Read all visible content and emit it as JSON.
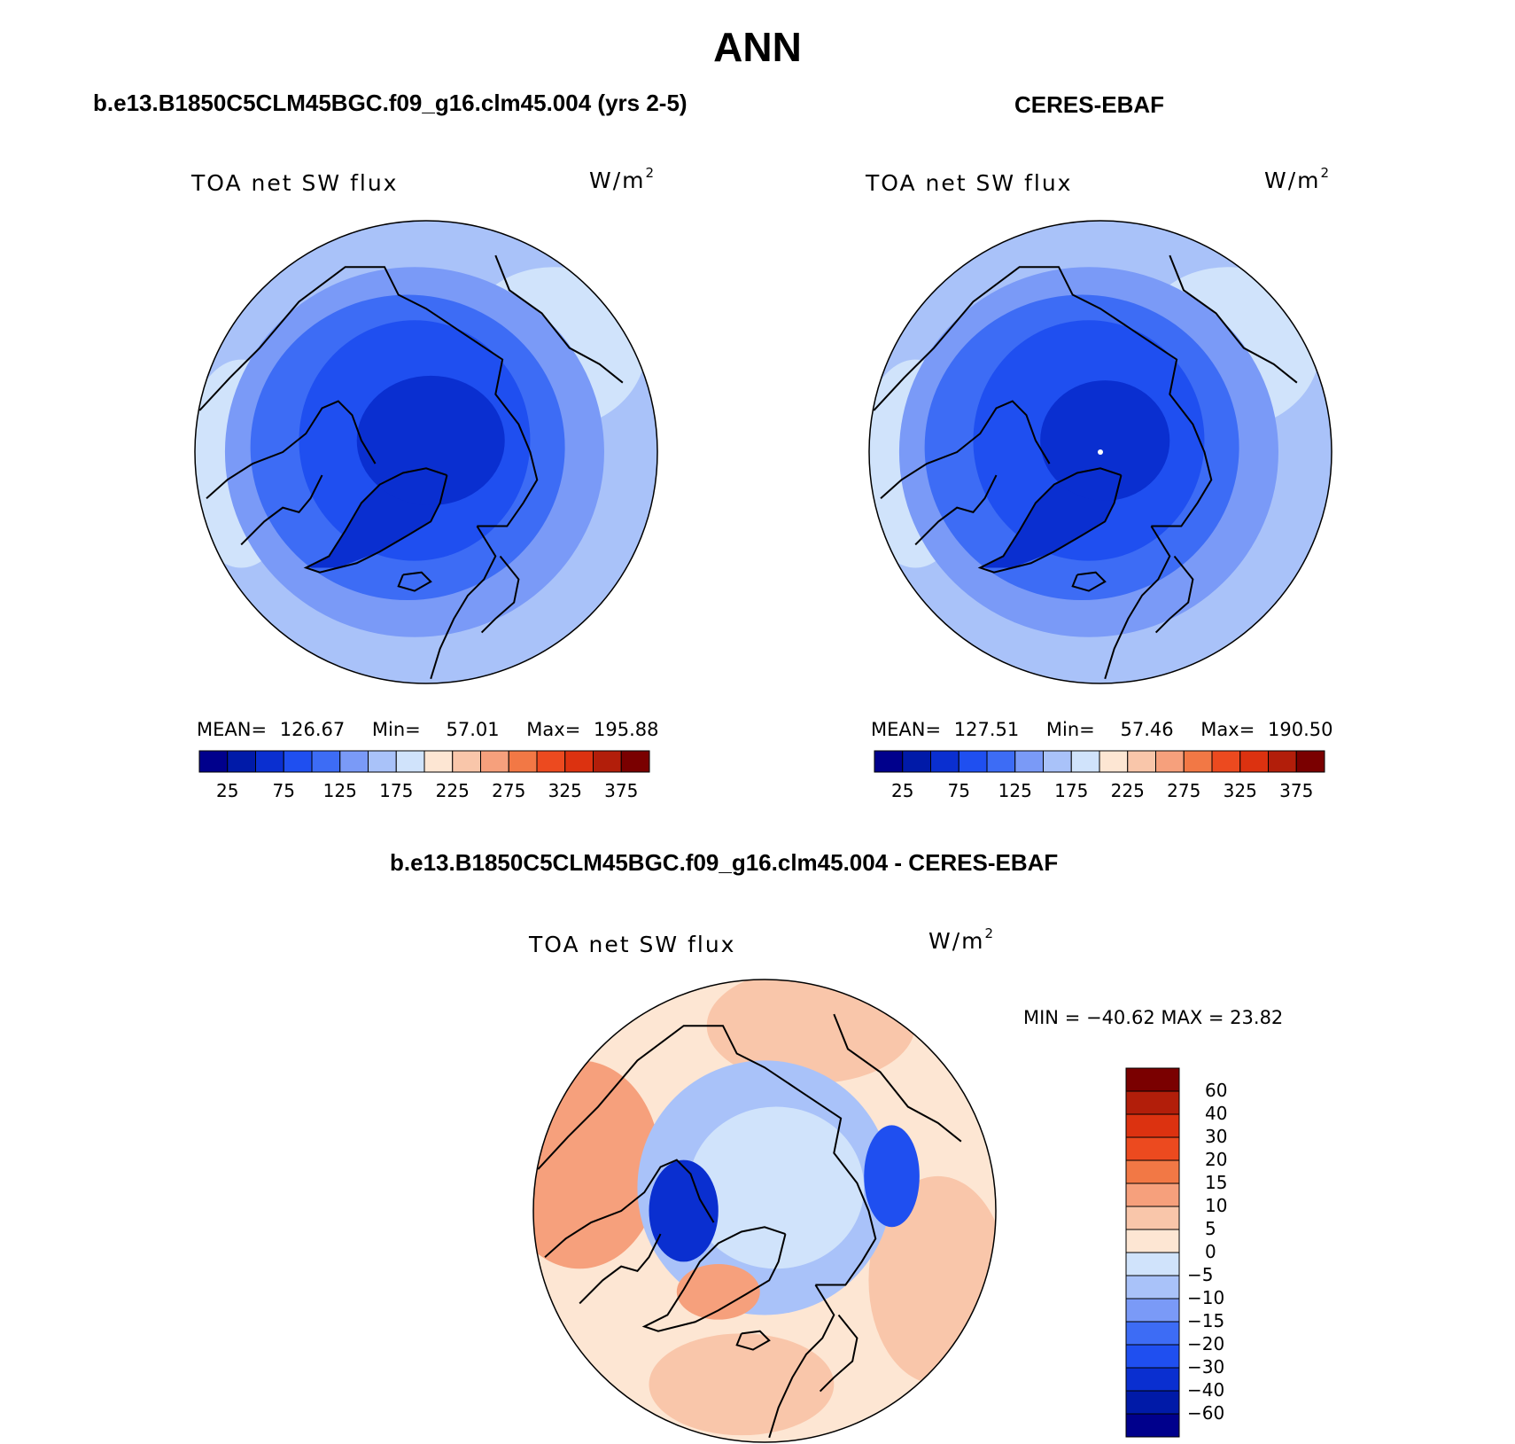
{
  "main_title": "ANN",
  "panels": [
    {
      "title": "b.e13.B1850C5CLM45BGC.f09_g16.clm45.004 (yrs 2-5)",
      "variable": "TOA net SW flux",
      "units_base": "W/m",
      "units_exp": "2",
      "stats": {
        "mean_label": "MEAN=",
        "mean": "126.67",
        "min_label": "Min=",
        "min": "57.01",
        "max_label": "Max=",
        "max": "195.88"
      }
    },
    {
      "title": "CERES-EBAF",
      "variable": "TOA net SW flux",
      "units_base": "W/m",
      "units_exp": "2",
      "stats": {
        "mean_label": "MEAN=",
        "mean": "127.51",
        "min_label": "Min=",
        "min": "57.46",
        "max_label": "Max=",
        "max": "190.50"
      }
    },
    {
      "title": "b.e13.B1850C5CLM45BGC.f09_g16.clm45.004 - CERES-EBAF",
      "variable": "TOA net SW flux",
      "units_base": "W/m",
      "units_exp": "2",
      "minmax": "MIN = −40.62 MAX =  23.82"
    }
  ],
  "chart_data": [
    {
      "type": "heatmap",
      "projection": "north-polar-stereographic",
      "title": "b.e13.B1850C5CLM45BGC.f09_g16.clm45.004 (yrs 2-5)",
      "variable": "TOA net SW flux",
      "mean": 126.67,
      "min": 57.01,
      "max": 195.88,
      "colorbar": {
        "orientation": "horizontal",
        "levels": [
          25,
          50,
          75,
          100,
          125,
          150,
          175,
          200,
          225,
          250,
          275,
          300,
          325,
          350,
          375
        ],
        "tick_labels": [
          "25",
          "75",
          "125",
          "175",
          "225",
          "275",
          "325",
          "375"
        ],
        "colors": [
          "#00008c",
          "#001aa8",
          "#0a2fd0",
          "#1f4ff0",
          "#3d6cf5",
          "#7a9af7",
          "#a9c2f9",
          "#d0e3fb",
          "#fde6d3",
          "#f9c6aa",
          "#f6a07c",
          "#f27845",
          "#ec4a1f",
          "#dc3210",
          "#b21e0a",
          "#7a0000"
        ]
      }
    },
    {
      "type": "heatmap",
      "projection": "north-polar-stereographic",
      "title": "CERES-EBAF",
      "variable": "TOA net SW flux",
      "mean": 127.51,
      "min": 57.46,
      "max": 190.5,
      "colorbar": {
        "orientation": "horizontal",
        "levels": [
          25,
          50,
          75,
          100,
          125,
          150,
          175,
          200,
          225,
          250,
          275,
          300,
          325,
          350,
          375
        ],
        "tick_labels": [
          "25",
          "75",
          "125",
          "175",
          "225",
          "275",
          "325",
          "375"
        ],
        "colors": [
          "#00008c",
          "#001aa8",
          "#0a2fd0",
          "#1f4ff0",
          "#3d6cf5",
          "#7a9af7",
          "#a9c2f9",
          "#d0e3fb",
          "#fde6d3",
          "#f9c6aa",
          "#f6a07c",
          "#f27845",
          "#ec4a1f",
          "#dc3210",
          "#b21e0a",
          "#7a0000"
        ]
      }
    },
    {
      "type": "heatmap",
      "projection": "north-polar-stereographic",
      "title": "b.e13.B1850C5CLM45BGC.f09_g16.clm45.004 - CERES-EBAF",
      "variable": "TOA net SW flux",
      "min": -40.62,
      "max": 23.82,
      "colorbar": {
        "orientation": "vertical",
        "levels": [
          -60,
          -40,
          -30,
          -20,
          -15,
          -10,
          -5,
          0,
          5,
          10,
          15,
          20,
          30,
          40,
          60
        ],
        "tick_labels": [
          "−60",
          "−40",
          "−30",
          "−20",
          "−15",
          "−10",
          "−5",
          "0",
          "5",
          "10",
          "15",
          "20",
          "30",
          "40",
          "60"
        ],
        "colors": [
          "#00008c",
          "#001aa8",
          "#0a2fd0",
          "#1f4ff0",
          "#3d6cf5",
          "#7a9af7",
          "#a9c2f9",
          "#d0e3fb",
          "#fde6d3",
          "#f9c6aa",
          "#f6a07c",
          "#f27845",
          "#ec4a1f",
          "#dc3210",
          "#b21e0a",
          "#7a0000"
        ]
      }
    }
  ]
}
